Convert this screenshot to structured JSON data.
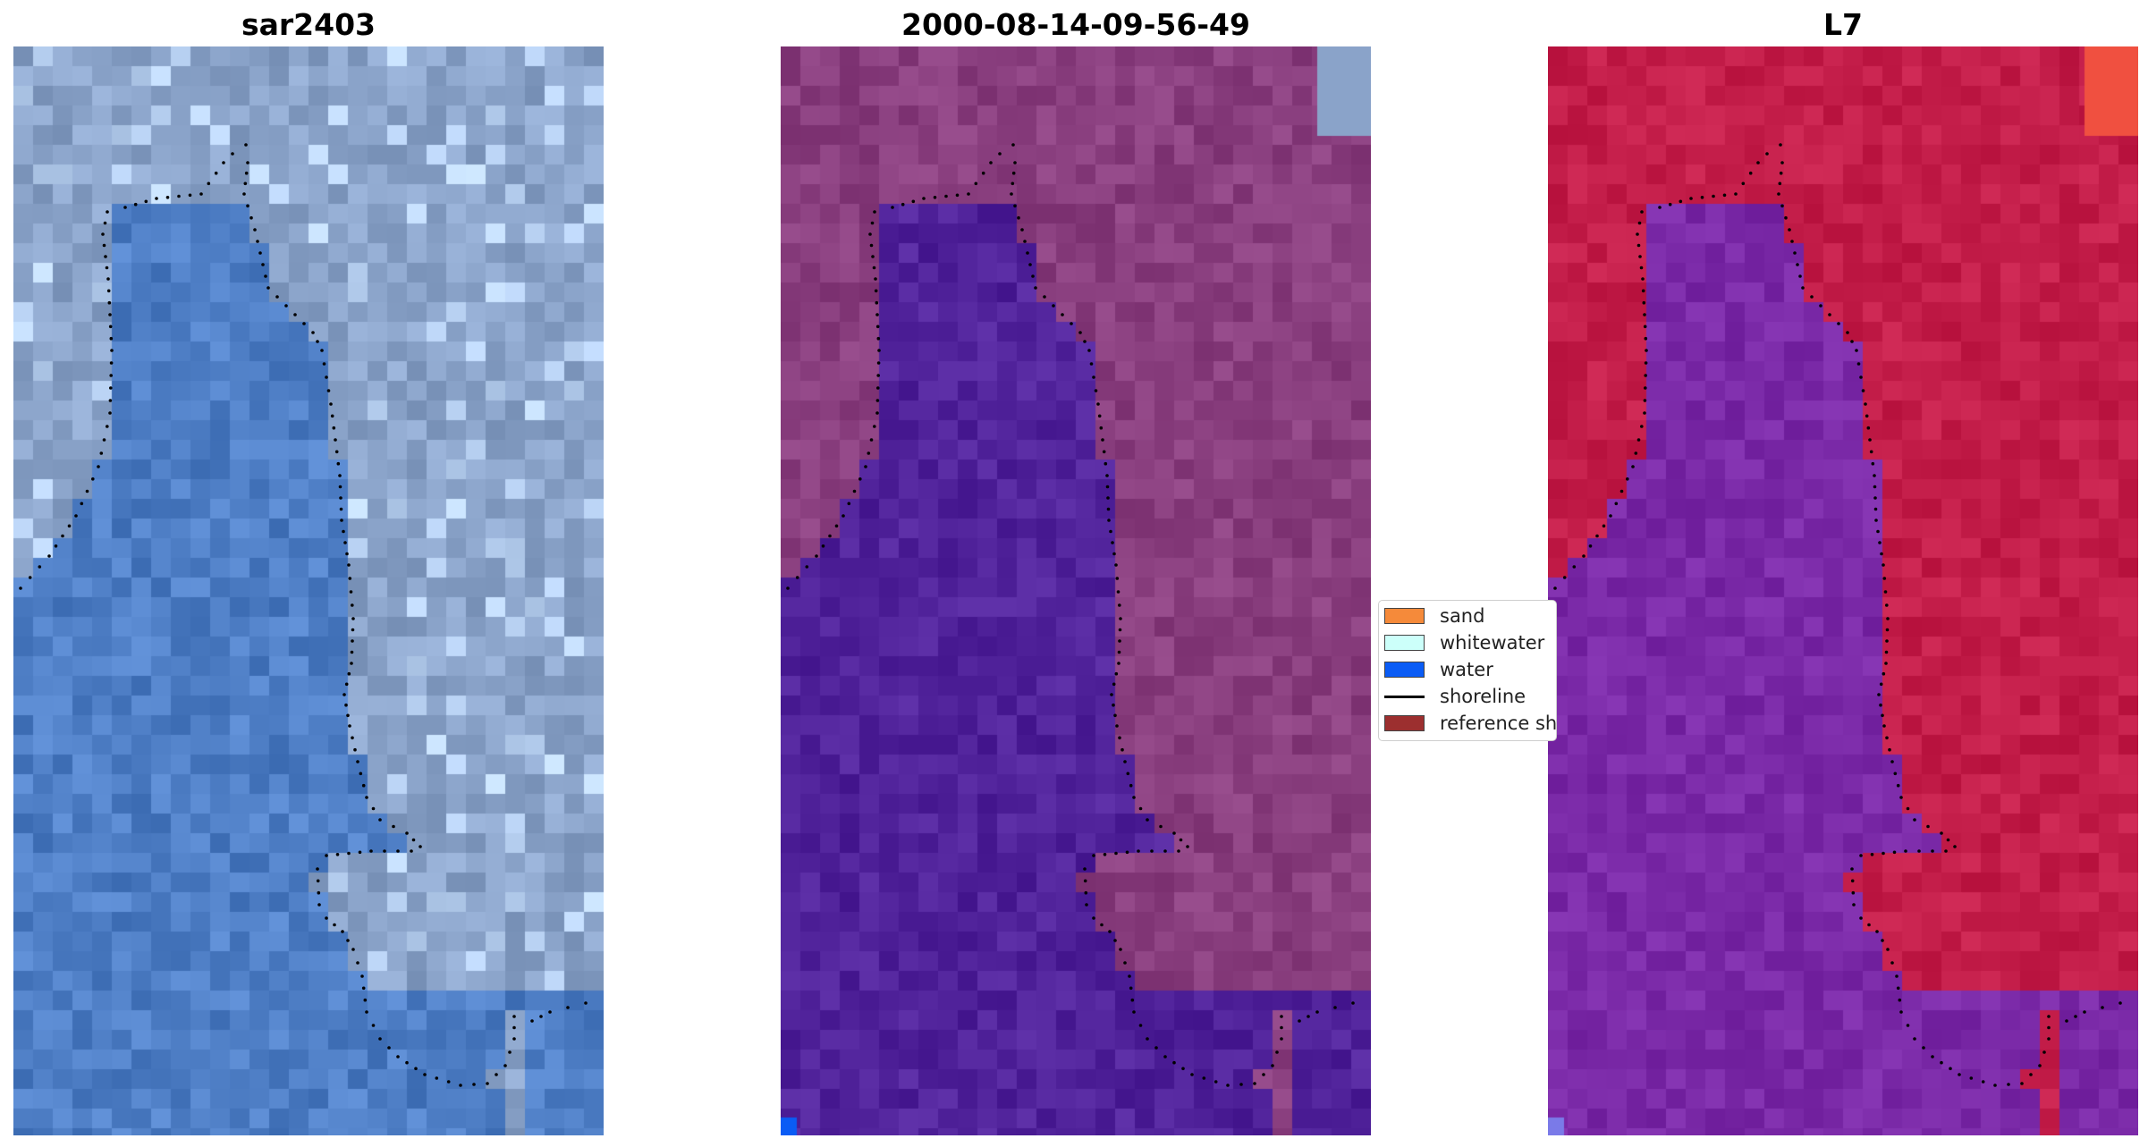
{
  "panels": [
    {
      "title": "sar2403",
      "kind": "rgb"
    },
    {
      "title": "2000-08-14-09-56-49",
      "kind": "classified"
    },
    {
      "title": "L7",
      "kind": "index"
    }
  ],
  "legend": {
    "items": [
      {
        "label": "sand",
        "type": "patch",
        "color": "#f58a3a"
      },
      {
        "label": "whitewater",
        "type": "patch",
        "color": "#ccfffa"
      },
      {
        "label": "water",
        "type": "patch",
        "color": "#0a5cf5"
      },
      {
        "label": "shoreline",
        "type": "line",
        "color": "#000000"
      },
      {
        "label": "reference shoreline",
        "type": "patch",
        "color": "#9c2f2f"
      }
    ]
  },
  "colors": {
    "rgb_water": "#4f7fc6",
    "rgb_land": "#8aa3c9",
    "classified_water": "#51239b",
    "classified_land": "#8a3f7f",
    "index_water": "#7b2aa8",
    "index_land": "#c41e4a",
    "shoreline_dots": "#000000"
  }
}
